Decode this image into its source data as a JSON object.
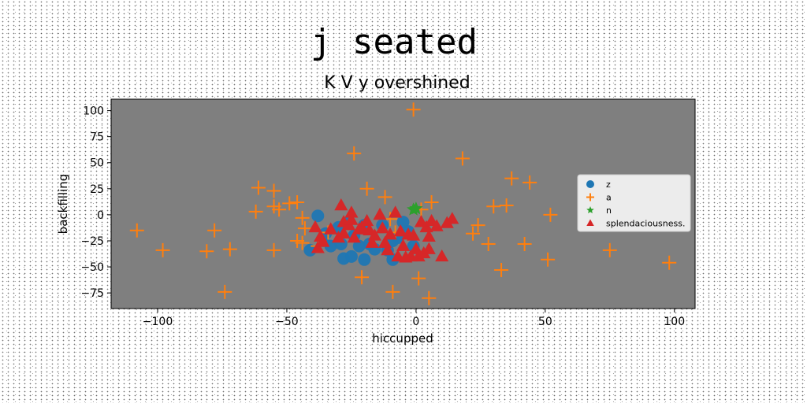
{
  "chart_data": {
    "type": "scatter",
    "title": "j seated",
    "subtitle": "K V y overshined",
    "xlabel": "hiccupped",
    "ylabel": "backfilling",
    "xlim": [
      -118,
      108
    ],
    "ylim": [
      -90,
      111
    ],
    "xticks": [
      -100,
      -50,
      0,
      50,
      100
    ],
    "yticks": [
      -75,
      -50,
      -25,
      0,
      25,
      50,
      75,
      100
    ],
    "grid": false,
    "legend_position": "center-right",
    "background_color": "#7f7f7f",
    "series": [
      {
        "name": "z",
        "marker": "circle",
        "color": "#1f77b4",
        "points": [
          [
            -38,
            -1
          ],
          [
            -36,
            -25
          ],
          [
            -41,
            -34
          ],
          [
            -33,
            -30
          ],
          [
            -30,
            -12
          ],
          [
            -29,
            -28
          ],
          [
            -28,
            -42
          ],
          [
            -25,
            -40
          ],
          [
            -24,
            -20
          ],
          [
            -22,
            -30
          ],
          [
            -20,
            -43
          ],
          [
            -18,
            -28
          ],
          [
            -16,
            -33
          ],
          [
            -13,
            -10
          ],
          [
            -11,
            -34
          ],
          [
            -9,
            -25
          ],
          [
            -7,
            -22
          ],
          [
            -5,
            -7
          ],
          [
            -3,
            -16
          ],
          [
            -1,
            -30
          ],
          [
            -9,
            -43
          ],
          [
            -27,
            -8
          ],
          [
            -35,
            -18
          ],
          [
            -20,
            -10
          ]
        ]
      },
      {
        "name": "a",
        "marker": "plus",
        "color": "#ff7f0e",
        "points": [
          [
            -108,
            -15
          ],
          [
            -98,
            -34
          ],
          [
            -81,
            -35
          ],
          [
            -78,
            -15
          ],
          [
            -72,
            -33
          ],
          [
            -74,
            -74
          ],
          [
            -62,
            3
          ],
          [
            -61,
            26
          ],
          [
            -55,
            23
          ],
          [
            -55,
            8
          ],
          [
            -55,
            -34
          ],
          [
            -53,
            5
          ],
          [
            -49,
            11
          ],
          [
            -46,
            12
          ],
          [
            -46,
            -25
          ],
          [
            -44,
            -3
          ],
          [
            -44,
            -27
          ],
          [
            -43,
            -13
          ],
          [
            -38,
            -30
          ],
          [
            -34,
            -17
          ],
          [
            -24,
            59
          ],
          [
            -19,
            25
          ],
          [
            -21,
            -60
          ],
          [
            -12,
            17
          ],
          [
            -9,
            -74
          ],
          [
            -10,
            -4
          ],
          [
            -8,
            -17
          ],
          [
            -1,
            101
          ],
          [
            1,
            -61
          ],
          [
            2,
            5
          ],
          [
            5,
            -80
          ],
          [
            6,
            12
          ],
          [
            18,
            54
          ],
          [
            22,
            -18
          ],
          [
            24,
            -10
          ],
          [
            28,
            -28
          ],
          [
            30,
            8
          ],
          [
            33,
            -53
          ],
          [
            35,
            9
          ],
          [
            37,
            35
          ],
          [
            42,
            -28
          ],
          [
            44,
            31
          ],
          [
            51,
            -43
          ],
          [
            52,
            0
          ],
          [
            75,
            -34
          ],
          [
            98,
            -46
          ]
        ]
      },
      {
        "name": "n",
        "marker": "star",
        "color": "#2ca02c",
        "points": [
          [
            -1,
            5
          ],
          [
            0,
            6
          ]
        ]
      },
      {
        "name": "splendaciousness.",
        "marker": "triangle",
        "color": "#d62728",
        "points": [
          [
            -39,
            -12
          ],
          [
            -38,
            -32
          ],
          [
            -37,
            -21
          ],
          [
            -36,
            -26
          ],
          [
            -29,
            9
          ],
          [
            -28,
            -7
          ],
          [
            -28,
            -18
          ],
          [
            -26,
            -10
          ],
          [
            -25,
            -5
          ],
          [
            -25,
            2
          ],
          [
            -24,
            -22
          ],
          [
            -22,
            -14
          ],
          [
            -21,
            -12
          ],
          [
            -19,
            -6
          ],
          [
            -18,
            -15
          ],
          [
            -16,
            -20
          ],
          [
            -14,
            0
          ],
          [
            -13,
            -13
          ],
          [
            -12,
            -27
          ],
          [
            -11,
            -34
          ],
          [
            -10,
            -19
          ],
          [
            -8,
            2
          ],
          [
            -7,
            -40
          ],
          [
            -6,
            -16
          ],
          [
            -5,
            -30
          ],
          [
            -4,
            -41
          ],
          [
            -3,
            -19
          ],
          [
            -2,
            -40
          ],
          [
            -1,
            -20
          ],
          [
            0,
            -33
          ],
          [
            1,
            -40
          ],
          [
            2,
            -7
          ],
          [
            3,
            -37
          ],
          [
            4,
            -12
          ],
          [
            5,
            -33
          ],
          [
            5,
            -21
          ],
          [
            6,
            -6
          ],
          [
            8,
            -11
          ],
          [
            10,
            -40
          ],
          [
            12,
            -8
          ],
          [
            14,
            -4
          ],
          [
            -33,
            -14
          ],
          [
            -30,
            -22
          ],
          [
            -17,
            -27
          ]
        ]
      }
    ]
  }
}
